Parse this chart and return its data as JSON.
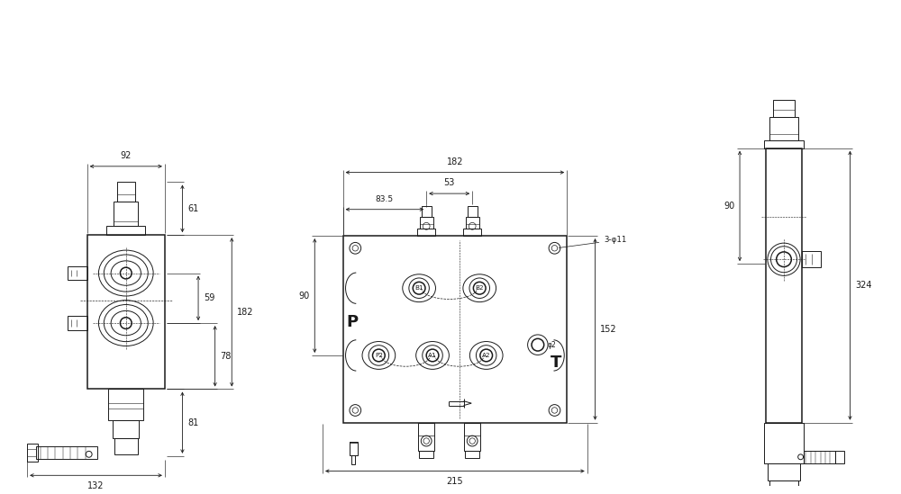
{
  "bg_color": "#ffffff",
  "line_color": "#1a1a1a",
  "dim_color": "#1a1a1a",
  "lw": 0.7,
  "tlw": 1.1,
  "dlw": 0.6,
  "figsize": [
    10.0,
    5.49
  ],
  "dpi": 100,
  "labels": {
    "left": {
      "92": "92",
      "61": "61",
      "59": "59",
      "78": "78",
      "182": "182",
      "81": "81",
      "132": "132"
    },
    "center": {
      "182": "182",
      "53": "53",
      "83_5": "83.5",
      "90": "90",
      "152": "152",
      "215": "215",
      "phi11": "3-φ11"
    },
    "right": {
      "90": "90",
      "324": "324"
    }
  }
}
